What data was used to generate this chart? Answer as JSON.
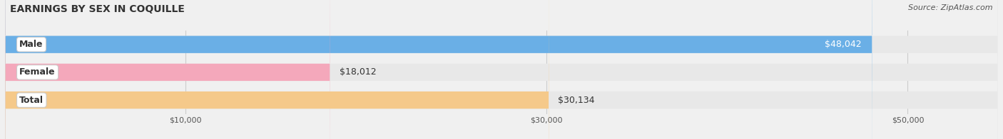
{
  "title": "EARNINGS BY SEX IN COQUILLE",
  "source": "Source: ZipAtlas.com",
  "categories": [
    "Male",
    "Female",
    "Total"
  ],
  "values": [
    48042,
    18012,
    30134
  ],
  "bar_colors": [
    "#6aafe6",
    "#f4a8bb",
    "#f5c98a"
  ],
  "bar_edge_colors": [
    "#5a9fd6",
    "#e898ab",
    "#e5b97a"
  ],
  "label_colors": [
    "#ffffff",
    "#333333",
    "#333333"
  ],
  "xlim": [
    0,
    55000
  ],
  "xticks": [
    10000,
    30000,
    50000
  ],
  "xtick_labels": [
    "$10,000",
    "$30,000",
    "$50,000"
  ],
  "background_color": "#f0f0f0",
  "bar_background_color": "#e8e8e8",
  "title_fontsize": 10,
  "source_fontsize": 8,
  "bar_label_fontsize": 9,
  "category_fontsize": 9,
  "figsize": [
    14.06,
    1.96
  ],
  "dpi": 100
}
